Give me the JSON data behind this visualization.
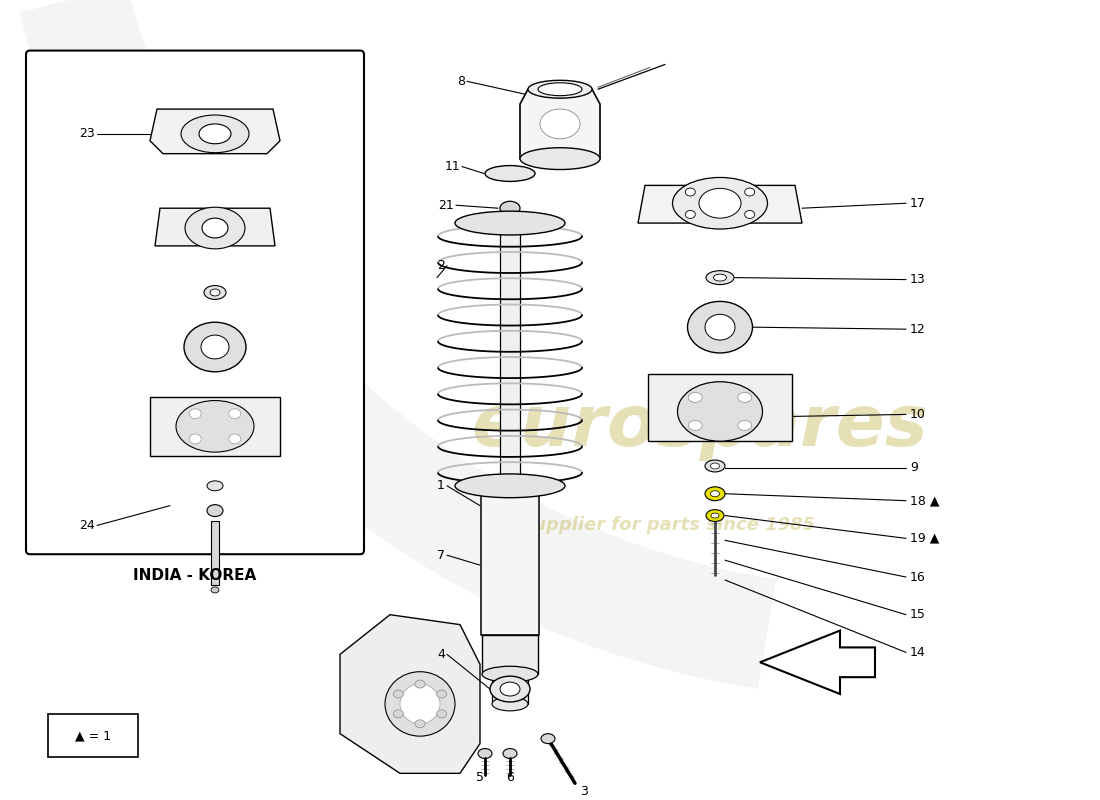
{
  "bg_color": "#ffffff",
  "watermark_color": "#c8bc5e",
  "india_korea_label": "INDIA - KOREA",
  "legend_text": "▲ = 1"
}
